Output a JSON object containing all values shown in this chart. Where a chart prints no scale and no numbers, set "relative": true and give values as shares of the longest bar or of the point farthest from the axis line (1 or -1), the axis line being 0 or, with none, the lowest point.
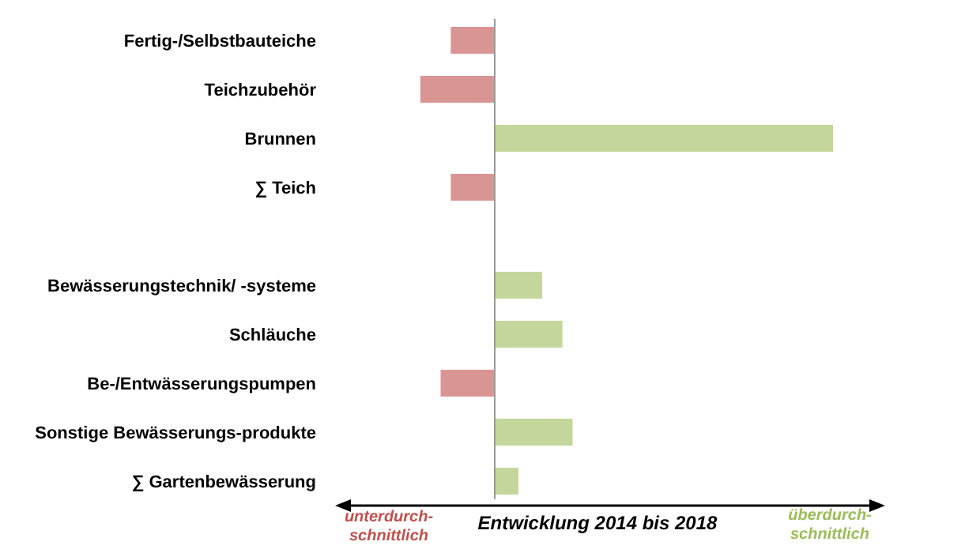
{
  "chart_data": {
    "type": "bar",
    "orientation": "horizontal",
    "relative": true,
    "categories": [
      "Fertig-/Selbstbauteiche",
      "Teichzubehör",
      "Brunnen",
      "∑ Teich",
      null,
      "Bewässerungstechnik/ -systeme",
      "Schläuche",
      "Be-/Entwässerungspumpen",
      "Sonstige Bewässerungs-produkte",
      "∑ Gartenbewässerung"
    ],
    "values": [
      -0.13,
      -0.22,
      1,
      -0.13,
      null,
      0.14,
      0.2,
      -0.16,
      0.23,
      0.07
    ],
    "colors": [
      "#d99594",
      "#d99594",
      "#c3d69b",
      "#d99594",
      null,
      "#c3d69b",
      "#c3d69b",
      "#d99594",
      "#c3d69b",
      "#c3d69b"
    ],
    "xlabel": "Entwicklung 2014 bis 2018",
    "annotations": [
      "unterdurch-\nschnittlich",
      "überdurch-\nschnittlich"
    ]
  }
}
